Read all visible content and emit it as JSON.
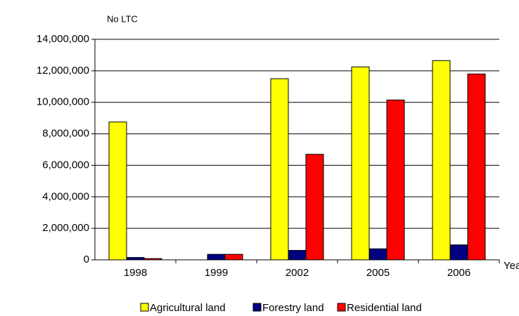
{
  "chart_data": {
    "type": "bar",
    "y_axis_label": "No LTC",
    "x_axis_label": "Year",
    "categories": [
      "1998",
      "1999",
      "2002",
      "2005",
      "2006"
    ],
    "series": [
      {
        "name": "Agricultural land",
        "color": "#ffff00",
        "values": [
          8750000,
          null,
          11500000,
          12250000,
          12650000
        ]
      },
      {
        "name": "Forestry land",
        "color": "#000080",
        "values": [
          150000,
          350000,
          600000,
          700000,
          950000
        ]
      },
      {
        "name": "Residential land",
        "color": "#ff0000",
        "values": [
          80000,
          350000,
          6700000,
          10150000,
          11800000
        ]
      }
    ],
    "ylim": [
      0,
      14000000
    ],
    "yticks": [
      0,
      {
        "value": 2000000,
        "label": "2,000,000"
      },
      {
        "value": 4000000,
        "label": "4,000,000"
      },
      {
        "value": 6000000,
        "label": "6,000,000"
      },
      {
        "value": 8000000,
        "label": "8,000,000"
      },
      {
        "value": 10000000,
        "label": "10,000,000"
      },
      {
        "value": 12000000,
        "label": "12,000,000"
      },
      {
        "value": 14000000,
        "label": "14,000,000"
      }
    ],
    "grid": true,
    "legend": "bottom"
  }
}
